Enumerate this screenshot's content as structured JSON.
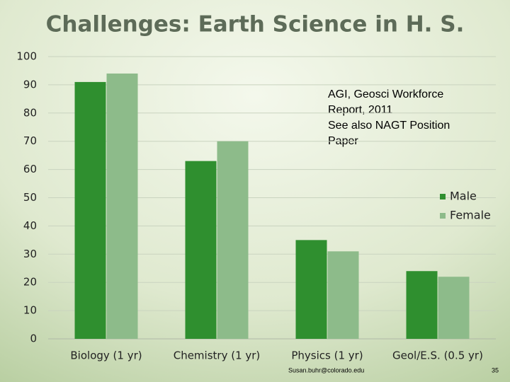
{
  "chart_data": {
    "type": "bar",
    "title": "Challenges:  Earth Science in H. S.",
    "annotation": [
      "AGI, Geosci Workforce",
      "Report, 2011",
      "See also NAGT Position",
      "Paper"
    ],
    "categories": [
      "Biology (1 yr)",
      "Chemistry (1 yr)",
      "Physics (1 yr)",
      "Geol/E.S. (0.5 yr)"
    ],
    "series": [
      {
        "name": "Male",
        "color": "#2f8f2f",
        "values": [
          91,
          63,
          35,
          24
        ]
      },
      {
        "name": "Female",
        "color": "#8dbb8a",
        "values": [
          94,
          70,
          31,
          22
        ]
      }
    ],
    "ylim": [
      0,
      100
    ],
    "yticks": [
      0,
      10,
      20,
      30,
      40,
      50,
      60,
      70,
      80,
      90,
      100
    ],
    "grid": true,
    "legend": "right"
  },
  "footer": {
    "email": "Susan.buhr@colorado.edu",
    "page_number": "35"
  }
}
